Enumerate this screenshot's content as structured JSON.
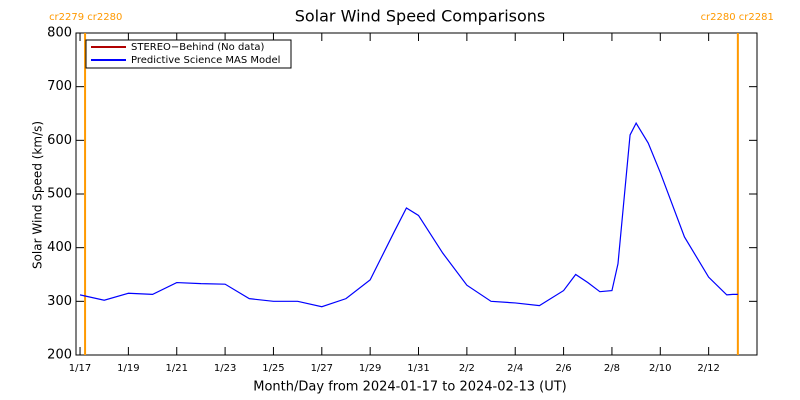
{
  "chart_data": {
    "type": "line",
    "title": "Solar Wind Speed Comparisons",
    "x_label": "Month/Day from 2024-01-17 to 2024-02-13 (UT)",
    "y_label": "Solar Wind Speed (km/s)",
    "x": [
      "2024-01-17T00:00",
      "2024-01-18T00:00",
      "2024-01-19T00:00",
      "2024-01-20T00:00",
      "2024-01-21T00:00",
      "2024-01-22T00:00",
      "2024-01-23T00:00",
      "2024-01-24T00:00",
      "2024-01-25T00:00",
      "2024-01-26T00:00",
      "2024-01-27T00:00",
      "2024-01-28T00:00",
      "2024-01-29T00:00",
      "2024-01-30T00:00",
      "2024-01-30T12:00",
      "2024-01-31T00:00",
      "2024-02-01T00:00",
      "2024-02-02T00:00",
      "2024-02-03T00:00",
      "2024-02-04T00:00",
      "2024-02-05T00:00",
      "2024-02-06T00:00",
      "2024-02-06T12:00",
      "2024-02-07T00:00",
      "2024-02-07T12:00",
      "2024-02-08T00:00",
      "2024-02-08T06:00",
      "2024-02-08T18:00",
      "2024-02-09T00:00",
      "2024-02-09T12:00",
      "2024-02-10T00:00",
      "2024-02-11T00:00",
      "2024-02-12T00:00",
      "2024-02-12T18:00",
      "2024-02-13T00:00",
      "2024-02-13T05:00"
    ],
    "series": [
      {
        "name": "STEREO−Behind (No data)",
        "color": "#b00000",
        "values": [
          null,
          null,
          null,
          null,
          null,
          null,
          null,
          null,
          null,
          null,
          null,
          null,
          null,
          null,
          null,
          null,
          null,
          null,
          null,
          null,
          null,
          null,
          null,
          null,
          null,
          null,
          null,
          null,
          null,
          null,
          null,
          null,
          null,
          null,
          null,
          null
        ]
      },
      {
        "name": "Predictive Science MAS Model",
        "color": "#0000ff",
        "values": [
          312,
          302,
          315,
          313,
          335,
          333,
          332,
          305,
          300,
          300,
          290,
          305,
          340,
          430,
          474,
          460,
          390,
          330,
          300,
          297,
          292,
          320,
          350,
          335,
          318,
          320,
          370,
          610,
          632,
          595,
          540,
          420,
          345,
          312,
          313,
          313
        ]
      }
    ],
    "xlim": [
      "2024-01-16T20:00",
      "2024-02-14T00:00"
    ],
    "xticks": [
      {
        "value": "2024-01-17T00:00",
        "label": "1/17"
      },
      {
        "value": "2024-01-19T00:00",
        "label": "1/19"
      },
      {
        "value": "2024-01-21T00:00",
        "label": "1/21"
      },
      {
        "value": "2024-01-23T00:00",
        "label": "1/23"
      },
      {
        "value": "2024-01-25T00:00",
        "label": "1/25"
      },
      {
        "value": "2024-01-27T00:00",
        "label": "1/27"
      },
      {
        "value": "2024-01-29T00:00",
        "label": "1/29"
      },
      {
        "value": "2024-01-31T00:00",
        "label": "1/31"
      },
      {
        "value": "2024-02-02T00:00",
        "label": "2/2"
      },
      {
        "value": "2024-02-04T00:00",
        "label": "2/4"
      },
      {
        "value": "2024-02-06T00:00",
        "label": "2/6"
      },
      {
        "value": "2024-02-08T00:00",
        "label": "2/8"
      },
      {
        "value": "2024-02-10T00:00",
        "label": "2/10"
      },
      {
        "value": "2024-02-12T00:00",
        "label": "2/12"
      }
    ],
    "ylim": [
      200,
      800
    ],
    "yticks": [
      200,
      300,
      400,
      500,
      600,
      700,
      800
    ],
    "legend": "upper left",
    "markers": [
      {
        "x": "2024-01-17T05:00",
        "label": "cr2279 cr2280",
        "color": "#ff9900"
      },
      {
        "x": "2024-02-13T05:00",
        "label": "cr2280 cr2281",
        "color": "#ff9900"
      }
    ]
  }
}
